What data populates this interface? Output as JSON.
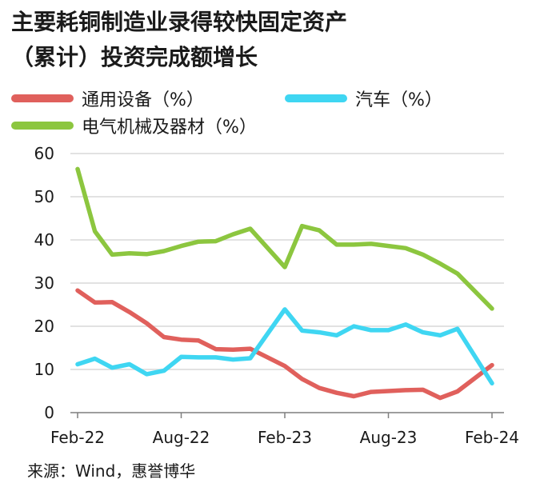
{
  "title_line1": "主要耗铜制造业录得较快固定资产",
  "title_line2": "（累计）投资完成额增长",
  "source": "来源：Wind，惠誉博华",
  "colors": {
    "general_equipment": "#e0605c",
    "auto": "#3fd6f2",
    "electrical": "#8cc63f",
    "grid": "#d9d9d9",
    "axis": "#7f7f7f"
  },
  "chart_data": {
    "type": "line",
    "title": "主要耗铜制造业录得较快固定资产（累计）投资完成额增长",
    "xlabel": "",
    "ylabel": "",
    "ylim": [
      0,
      60
    ],
    "yticks": [
      0,
      10,
      20,
      30,
      40,
      50,
      60
    ],
    "grid": true,
    "legend_position": "top",
    "x": [
      "2022-02",
      "2022-03",
      "2022-04",
      "2022-05",
      "2022-06",
      "2022-07",
      "2022-08",
      "2022-09",
      "2022-10",
      "2022-11",
      "2022-12",
      "2023-02",
      "2023-03",
      "2023-04",
      "2023-05",
      "2023-06",
      "2023-07",
      "2023-08",
      "2023-09",
      "2023-10",
      "2023-11",
      "2023-12",
      "2024-02"
    ],
    "xtick_labels": [
      {
        "x": "2022-02",
        "label": "Feb-22"
      },
      {
        "x": "2022-08",
        "label": "Aug-22"
      },
      {
        "x": "2023-02",
        "label": "Feb-23"
      },
      {
        "x": "2023-08",
        "label": "Aug-23"
      },
      {
        "x": "2024-02",
        "label": "Feb-24"
      }
    ],
    "series": [
      {
        "name": "通用设备（%）",
        "color_key": "general_equipment",
        "values": [
          28.3,
          25.5,
          25.6,
          23.3,
          20.7,
          17.5,
          16.9,
          16.7,
          14.7,
          14.6,
          14.8,
          10.8,
          7.8,
          5.7,
          4.6,
          3.8,
          4.8,
          5.0,
          5.2,
          5.3,
          3.4,
          4.9,
          11.0
        ]
      },
      {
        "name": "汽车（%）",
        "color_key": "auto",
        "values": [
          11.2,
          12.5,
          10.4,
          11.2,
          8.9,
          9.7,
          12.9,
          12.8,
          12.8,
          12.3,
          12.6,
          23.9,
          19.0,
          18.6,
          17.9,
          20.0,
          19.1,
          19.1,
          20.4,
          18.6,
          17.9,
          19.4,
          6.8
        ]
      },
      {
        "name": "电气机械及器材（%）",
        "color_key": "electrical",
        "values": [
          56.4,
          42.0,
          36.6,
          36.9,
          36.7,
          37.4,
          38.6,
          39.6,
          39.7,
          41.3,
          42.6,
          33.7,
          43.2,
          42.2,
          38.9,
          38.9,
          39.1,
          38.6,
          38.1,
          36.6,
          34.5,
          32.2,
          24.1
        ]
      }
    ]
  }
}
